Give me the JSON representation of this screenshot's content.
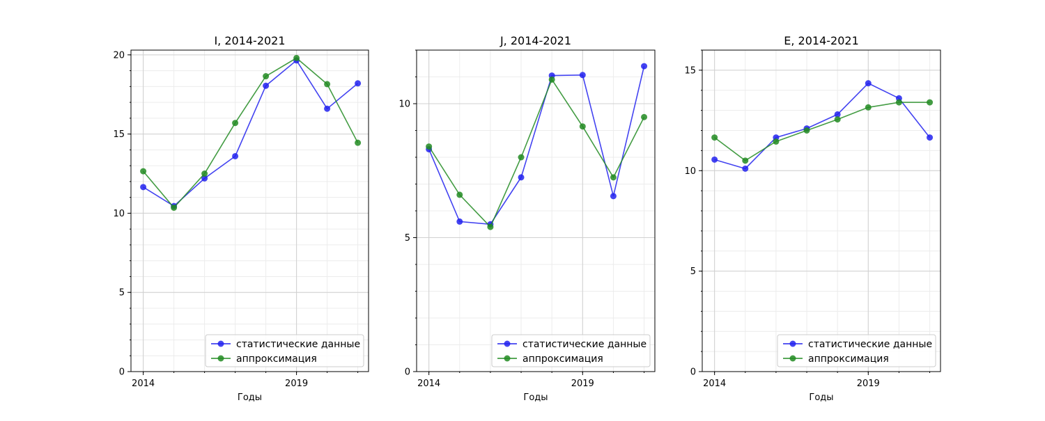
{
  "chart_data": [
    {
      "type": "line",
      "title": "I, 2014-2021",
      "xlabel": "Годы",
      "ylabel": "",
      "x": [
        2014,
        2015,
        2016,
        2017,
        2018,
        2019,
        2020,
        2021
      ],
      "xticks": [
        "2014",
        "2019"
      ],
      "yticks": [
        0,
        5,
        10,
        15,
        20
      ],
      "xlim": [
        2013.6,
        2021.35
      ],
      "ylim": [
        0,
        20.3
      ],
      "grid": true,
      "legend_position": "lower-right",
      "series": [
        {
          "name": "статистические данные",
          "color": "#2222ee",
          "values": [
            11.65,
            10.45,
            12.2,
            13.6,
            18.05,
            19.65,
            16.6,
            18.2
          ]
        },
        {
          "name": "аппроксимация",
          "color": "#228B22",
          "values": [
            12.65,
            10.35,
            12.5,
            15.7,
            18.65,
            19.8,
            18.15,
            14.45
          ]
        }
      ]
    },
    {
      "type": "line",
      "title": "J, 2014-2021",
      "xlabel": "Годы",
      "ylabel": "",
      "x": [
        2014,
        2015,
        2016,
        2017,
        2018,
        2019,
        2020,
        2021
      ],
      "xticks": [
        "2014",
        "2019"
      ],
      "yticks": [
        0,
        5,
        10
      ],
      "xlim": [
        2013.6,
        2021.35
      ],
      "ylim": [
        0,
        12
      ],
      "grid": true,
      "legend_position": "lower-right",
      "series": [
        {
          "name": "статистические данные",
          "color": "#2222ee",
          "values": [
            8.3,
            5.6,
            5.5,
            7.25,
            11.05,
            11.07,
            6.55,
            11.4
          ]
        },
        {
          "name": "аппроксимация",
          "color": "#228B22",
          "values": [
            8.4,
            6.6,
            5.4,
            8.0,
            10.9,
            9.15,
            7.25,
            9.5
          ]
        }
      ]
    },
    {
      "type": "line",
      "title": "E, 2014-2021",
      "xlabel": "Годы",
      "ylabel": "",
      "x": [
        2014,
        2015,
        2016,
        2017,
        2018,
        2019,
        2020,
        2021
      ],
      "xticks": [
        "2014",
        "2019"
      ],
      "yticks": [
        0,
        5,
        10,
        15
      ],
      "xlim": [
        2013.6,
        2021.35
      ],
      "ylim": [
        0,
        16
      ],
      "grid": true,
      "legend_position": "lower-right",
      "series": [
        {
          "name": "статистические данные",
          "color": "#2222ee",
          "values": [
            10.55,
            10.1,
            11.65,
            12.1,
            12.8,
            14.35,
            13.6,
            11.65
          ]
        },
        {
          "name": "аппроксимация",
          "color": "#228B22",
          "values": [
            11.65,
            10.5,
            11.45,
            12.0,
            12.55,
            13.15,
            13.4,
            13.4
          ]
        }
      ]
    }
  ]
}
